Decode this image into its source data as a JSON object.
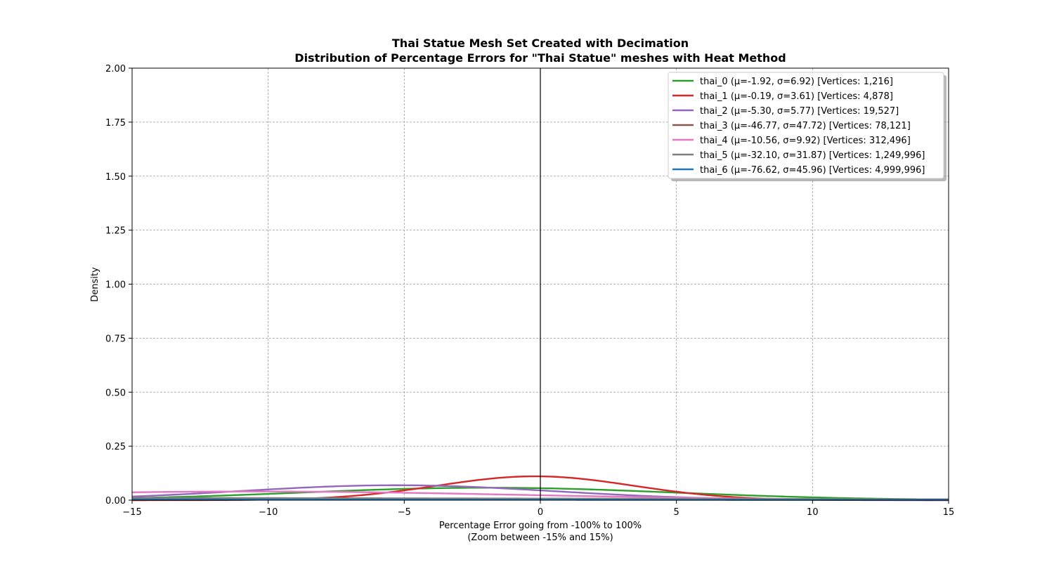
{
  "chart_data": {
    "type": "line",
    "title_line1": "Thai Statue Mesh Set Created with Decimation",
    "title_line2": "Distribution of Percentage Errors for \"Thai Statue\" meshes with Heat Method",
    "xlabel_line1": "Percentage Error going from -100% to 100%",
    "xlabel_line2": "(Zoom between -15% and 15%)",
    "ylabel": "Density",
    "xlim": [
      -15,
      15
    ],
    "ylim": [
      0,
      2
    ],
    "x_ticks": [
      -15,
      -10,
      -5,
      0,
      5,
      10,
      15
    ],
    "x_tick_labels": [
      "−15",
      "−10",
      "−5",
      "0",
      "5",
      "10",
      "15"
    ],
    "y_ticks": [
      0,
      0.25,
      0.5,
      0.75,
      1.0,
      1.25,
      1.5,
      1.75,
      2.0
    ],
    "y_tick_labels": [
      "0.00",
      "0.25",
      "0.50",
      "0.75",
      "1.00",
      "1.25",
      "1.50",
      "1.75",
      "2.00"
    ],
    "grid": true,
    "vertical_reference_line_x": 0,
    "legend_position": "top-right",
    "series": [
      {
        "name": "thai_0 (μ=-1.92, σ=6.92) [Vertices: 1,216]",
        "mu": -1.92,
        "sigma": 6.92,
        "color": "#2ca02c"
      },
      {
        "name": "thai_1 (μ=-0.19, σ=3.61) [Vertices: 4,878]",
        "mu": -0.19,
        "sigma": 3.61,
        "color": "#d62728"
      },
      {
        "name": "thai_2 (μ=-5.30, σ=5.77) [Vertices: 19,527]",
        "mu": -5.3,
        "sigma": 5.77,
        "color": "#9467bd"
      },
      {
        "name": "thai_3 (μ=-46.77, σ=47.72) [Vertices: 78,121]",
        "mu": -46.77,
        "sigma": 47.72,
        "color": "#8c564b"
      },
      {
        "name": "thai_4 (μ=-10.56, σ=9.92) [Vertices: 312,496]",
        "mu": -10.56,
        "sigma": 9.92,
        "color": "#e377c2"
      },
      {
        "name": "thai_5 (μ=-32.10, σ=31.87) [Vertices: 1,249,996]",
        "mu": -32.1,
        "sigma": 31.87,
        "color": "#7f7f7f"
      },
      {
        "name": "thai_6 (μ=-76.62, σ=45.96) [Vertices: 4,999,996]",
        "mu": -76.62,
        "sigma": 45.96,
        "color": "#1f77b4"
      }
    ]
  }
}
